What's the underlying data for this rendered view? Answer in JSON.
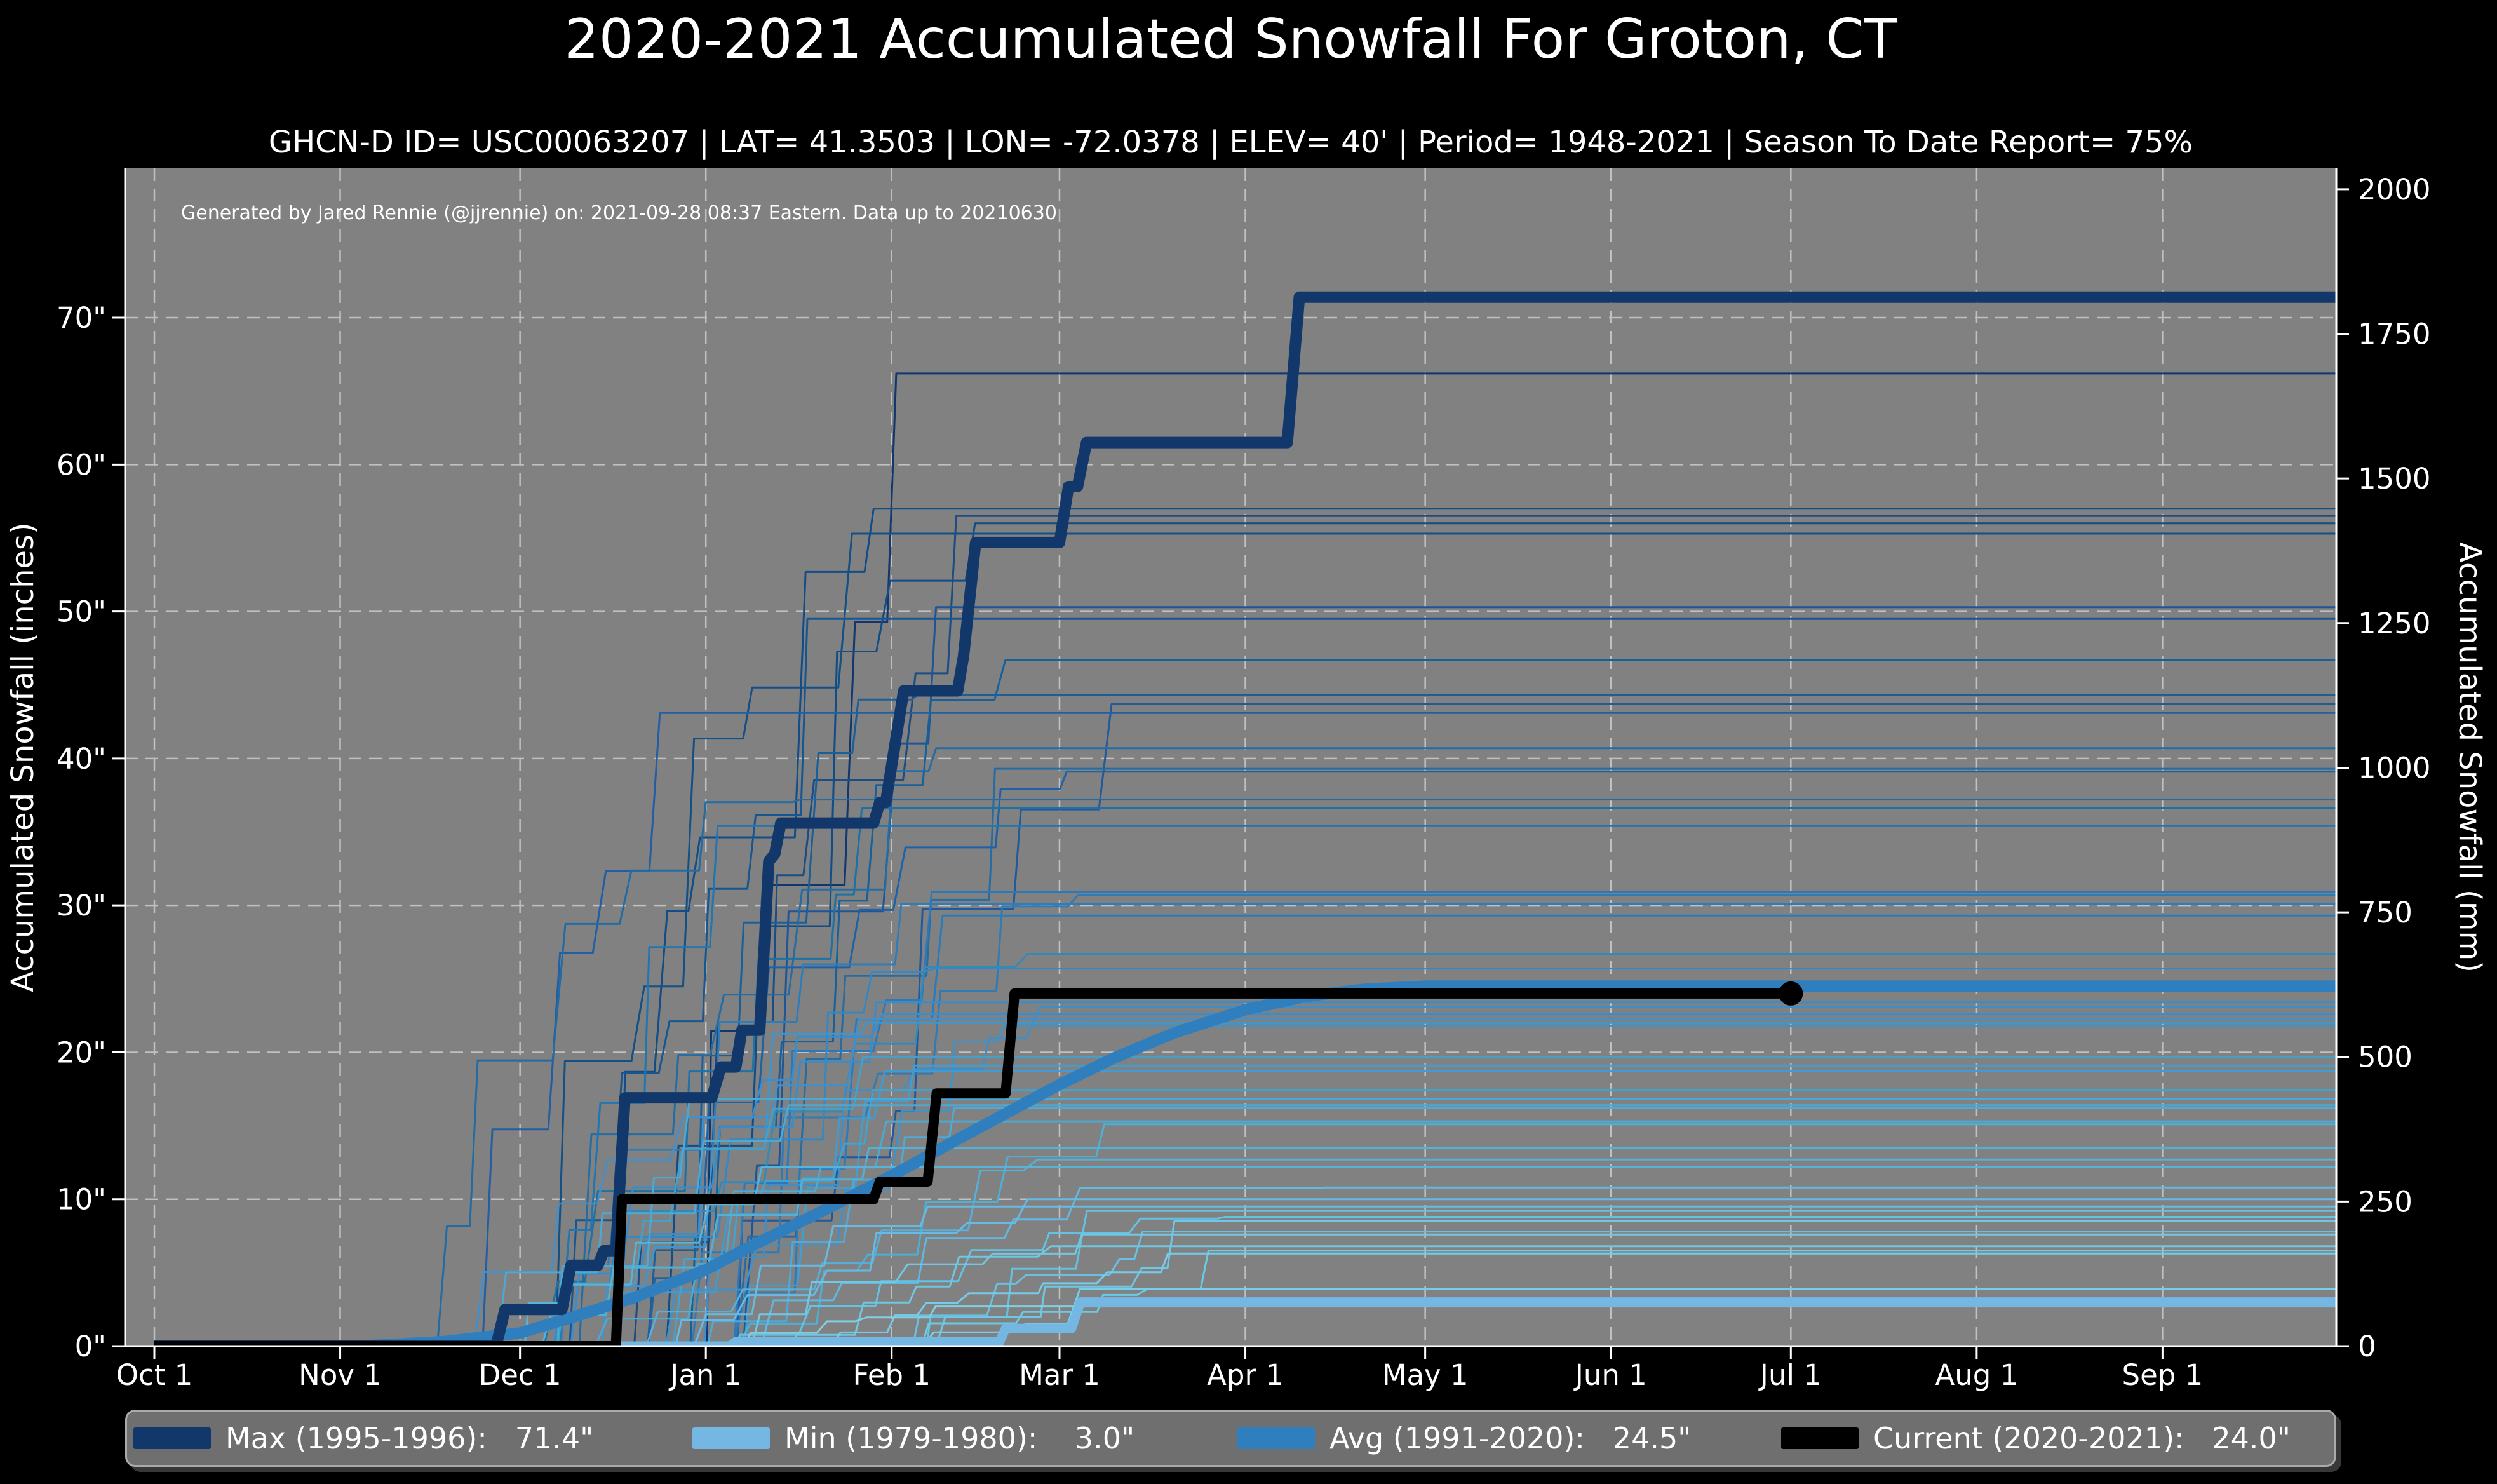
{
  "title": "2020-2021 Accumulated Snowfall For Groton, CT",
  "subtitle": "GHCN-D ID= USC00063207 | LAT= 41.3503 | LON= -72.0378 | ELEV= 40' | Period= 1948-2021 | Season To Date Report= 75%",
  "annotation": "Generated by Jared Rennie (@jjrennie) on: 2021-09-28 08:37 Eastern. Data up to 20210630",
  "axes": {
    "x": {
      "ticks": [
        {
          "day": 0,
          "label": "Oct 1"
        },
        {
          "day": 31,
          "label": "Nov 1"
        },
        {
          "day": 61,
          "label": "Dec 1"
        },
        {
          "day": 92,
          "label": "Jan 1"
        },
        {
          "day": 123,
          "label": "Feb 1"
        },
        {
          "day": 151,
          "label": "Mar 1"
        },
        {
          "day": 182,
          "label": "Apr 1"
        },
        {
          "day": 212,
          "label": "May 1"
        },
        {
          "day": 243,
          "label": "Jun 1"
        },
        {
          "day": 273,
          "label": "Jul 1"
        },
        {
          "day": 304,
          "label": "Aug 1"
        },
        {
          "day": 335,
          "label": "Sep 1"
        }
      ]
    },
    "y_left": {
      "label": "Accumulated Snowfall (inches)",
      "ticks": [
        {
          "v": 0,
          "label": "0\""
        },
        {
          "v": 10,
          "label": "10\""
        },
        {
          "v": 20,
          "label": "20\""
        },
        {
          "v": 30,
          "label": "30\""
        },
        {
          "v": 40,
          "label": "40\""
        },
        {
          "v": 50,
          "label": "50\""
        },
        {
          "v": 60,
          "label": "60\""
        },
        {
          "v": 70,
          "label": "70\""
        }
      ]
    },
    "y_right": {
      "label": "Accumulated Snowfall (mm)",
      "ticks": [
        {
          "mm": 0,
          "label": "0"
        },
        {
          "mm": 250,
          "label": "250"
        },
        {
          "mm": 500,
          "label": "500"
        },
        {
          "mm": 750,
          "label": "750"
        },
        {
          "mm": 1000,
          "label": "1000"
        },
        {
          "mm": 1250,
          "label": "1250"
        },
        {
          "mm": 1500,
          "label": "1500"
        },
        {
          "mm": 1750,
          "label": "1750"
        },
        {
          "mm": 2000,
          "label": "2000"
        }
      ]
    }
  },
  "legend": {
    "items": [
      {
        "label": "Max (1995-1996):   71.4\"",
        "color": "#12386b"
      },
      {
        "label": "Min (1979-1980):    3.0\"",
        "color": "#74b7e3"
      },
      {
        "label": "Avg (1991-2020):   24.5\"",
        "color": "#2f7fbf"
      },
      {
        "label": "Current (2020-2021):   24.0\"",
        "color": "#000000"
      }
    ]
  },
  "chart_data": {
    "type": "line",
    "x_unit": "days_since_Oct_1",
    "xlim_days": [
      -4.9,
      364.3
    ],
    "ylim_inches": [
      0,
      80.2
    ],
    "series": [
      {
        "name": "Max (1995-1996)",
        "total_inches": 71.4,
        "color": "#12386b",
        "width": 18,
        "points": [
          [
            0,
            0
          ],
          [
            57,
            0
          ],
          [
            58.5,
            2.5
          ],
          [
            68,
            2.5
          ],
          [
            69.5,
            5.5
          ],
          [
            74,
            5.5
          ],
          [
            75,
            6.5
          ],
          [
            77,
            6.5
          ],
          [
            78.5,
            16.9
          ],
          [
            93,
            16.9
          ],
          [
            94.5,
            19
          ],
          [
            97,
            19
          ],
          [
            98,
            21.5
          ],
          [
            101,
            21.5
          ],
          [
            102.5,
            33
          ],
          [
            103.5,
            33.5
          ],
          [
            104.5,
            35.6
          ],
          [
            120,
            35.6
          ],
          [
            121,
            37
          ],
          [
            122,
            37
          ],
          [
            125,
            44.6
          ],
          [
            134,
            44.6
          ],
          [
            135,
            47
          ],
          [
            137,
            54.7
          ],
          [
            151,
            54.7
          ],
          [
            152.5,
            58.5
          ],
          [
            154,
            58.5
          ],
          [
            155.5,
            61.5
          ],
          [
            189,
            61.5
          ],
          [
            191,
            71.4
          ],
          [
            364,
            71.4
          ]
        ]
      },
      {
        "name": "Min (1979-1980)",
        "total_inches": 3.0,
        "color": "#74b7e3",
        "width": 15,
        "points": [
          [
            0,
            0
          ],
          [
            96,
            0
          ],
          [
            97,
            0.3
          ],
          [
            141,
            0.3
          ],
          [
            142,
            1.2
          ],
          [
            153,
            1.2
          ],
          [
            154.5,
            3.0
          ],
          [
            364,
            3.0
          ]
        ]
      },
      {
        "name": "Avg (1991-2020)",
        "total_inches": 24.5,
        "color": "#2f7fbf",
        "width": 18,
        "points": [
          [
            34,
            0
          ],
          [
            48,
            0.3
          ],
          [
            61,
            0.9
          ],
          [
            70,
            2.0
          ],
          [
            80,
            3.3
          ],
          [
            92,
            5.2
          ],
          [
            100,
            6.9
          ],
          [
            110,
            8.9
          ],
          [
            123,
            11.6
          ],
          [
            135,
            14.3
          ],
          [
            151,
            17.8
          ],
          [
            160,
            19.6
          ],
          [
            170,
            21.3
          ],
          [
            182,
            22.9
          ],
          [
            192,
            23.8
          ],
          [
            202,
            24.3
          ],
          [
            212,
            24.5
          ],
          [
            364,
            24.5
          ]
        ]
      },
      {
        "name": "Current (2020-2021)",
        "total_inches": 24.0,
        "color": "#000000",
        "width": 16,
        "marker_end": true,
        "points": [
          [
            0,
            0
          ],
          [
            77,
            0
          ],
          [
            78,
            10.0
          ],
          [
            120,
            10.0
          ],
          [
            121,
            11.2
          ],
          [
            129,
            11.2
          ],
          [
            130.5,
            17.2
          ],
          [
            142,
            17.2
          ],
          [
            143.5,
            24.0
          ],
          [
            273,
            24.0
          ]
        ]
      }
    ],
    "background_seasons": {
      "description": "One thin step line per season 1948-2021, colored light-to-dark blue by season total",
      "final_totals_inches": [
        66.2,
        57.0,
        56.5,
        56.0,
        55.3,
        50.3,
        49.5,
        46.7,
        44.3,
        43.7,
        43.1,
        40.7,
        39.3,
        39.1,
        37.2,
        36.6,
        35.4,
        30.9,
        30.7,
        30.1,
        29.3,
        26.7,
        25.7,
        23.4,
        23.1,
        22.6,
        22.3,
        22.0,
        21.8,
        19.7,
        19.1,
        18.7,
        17.4,
        16.8,
        16.4,
        16.2,
        15.3,
        15.1,
        13.5,
        12.7,
        12.2,
        10.8,
        10.0,
        9.5,
        9.2,
        8.8,
        8.5,
        7.8,
        7.6,
        6.8,
        6.5,
        6.3,
        3.9,
        2.7
      ],
      "color_scale": [
        [
          3,
          "#7ecde8"
        ],
        [
          10,
          "#64bee1"
        ],
        [
          16,
          "#4aaad4"
        ],
        [
          22,
          "#3c96cc"
        ],
        [
          28,
          "#3085be"
        ],
        [
          36,
          "#246eac"
        ],
        [
          44,
          "#1d5f9e"
        ],
        [
          52,
          "#185290"
        ],
        [
          60,
          "#144680"
        ],
        [
          67,
          "#113c70"
        ]
      ]
    }
  },
  "colors": {
    "figure_bg": "#000000",
    "plot_bg": "#818181",
    "grid": "#d0d0d0",
    "text": "#ffffff",
    "legend_bg": "#6f6f6f",
    "legend_border": "#aaaaaa",
    "spine": "#ffffff"
  }
}
